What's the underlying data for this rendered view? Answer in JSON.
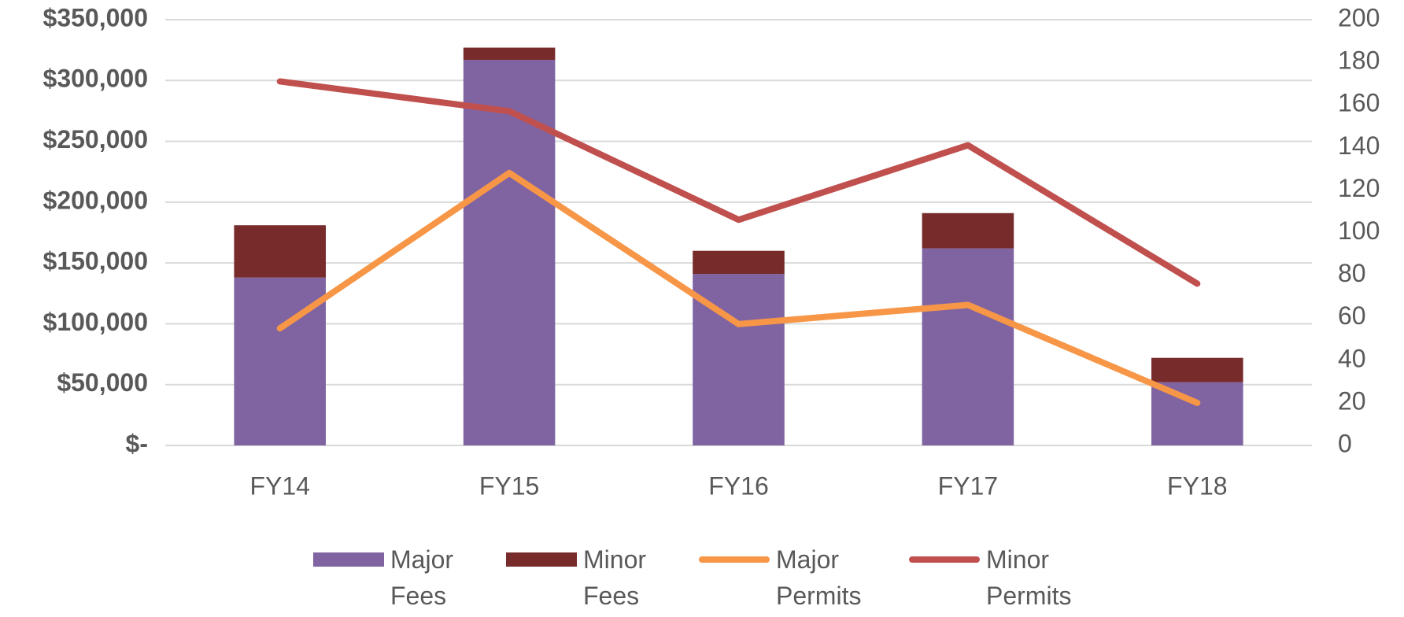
{
  "chart_data": {
    "type": "bar",
    "categories": [
      "FY14",
      "FY15",
      "FY16",
      "FY17",
      "FY18"
    ],
    "series": [
      {
        "name": "Major Fees",
        "type": "bar",
        "color": "#8064a2",
        "values": [
          138000,
          317000,
          141000,
          162000,
          52000
        ]
      },
      {
        "name": "Minor Fees",
        "type": "bar",
        "color": "#772b2b",
        "values": [
          43000,
          10000,
          19000,
          29000,
          20000
        ]
      },
      {
        "name": "Major Permits",
        "type": "line",
        "axis": "y2",
        "color": "#f79646",
        "values": [
          55,
          128,
          57,
          66,
          20
        ]
      },
      {
        "name": "Minor Permits",
        "type": "line",
        "axis": "y2",
        "color": "#c0504d",
        "values": [
          171,
          157,
          106,
          141,
          76
        ]
      }
    ],
    "stacked": true,
    "ylim": [
      0,
      350000
    ],
    "yticks": [
      {
        "value": 0,
        "label": "$-"
      },
      {
        "value": 50000,
        "label": "$50,000"
      },
      {
        "value": 100000,
        "label": "$100,000"
      },
      {
        "value": 150000,
        "label": "$150,000"
      },
      {
        "value": 200000,
        "label": "$200,000"
      },
      {
        "value": 250000,
        "label": "$250,000"
      },
      {
        "value": 300000,
        "label": "$300,000"
      },
      {
        "value": 350000,
        "label": "$350,000"
      }
    ],
    "y2lim": [
      0,
      200
    ],
    "y2ticks": [
      0,
      20,
      40,
      60,
      80,
      100,
      120,
      140,
      160,
      180,
      200
    ],
    "grid": true,
    "legend": "bottom"
  }
}
